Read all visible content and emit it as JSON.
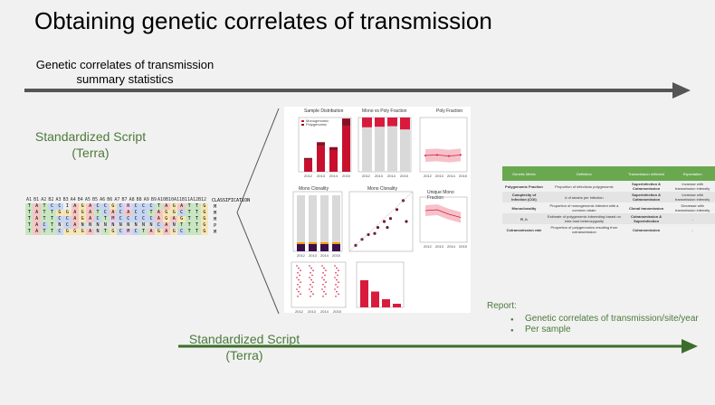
{
  "title": "Obtaining genetic correlates of transmission",
  "top_arrow_label": "Genetic correlates of transmission summary statistics",
  "script_left": {
    "line1": "Standardized Script",
    "line2": "(Terra)"
  },
  "script_bottom": {
    "line1": "Standardized Script",
    "line2": "(Terra)"
  },
  "report": {
    "heading": "Report:",
    "items": [
      "Genetic correlates of transmission/site/year",
      "Per sample"
    ]
  },
  "colors": {
    "green": "#4b7a3a",
    "arrow_gray": "#555555",
    "red": "#d81b3c",
    "table_header": "#6aa84f"
  },
  "alignment": {
    "header": [
      "A1",
      "B1",
      "A2",
      "B2",
      "A3",
      "B3",
      "A4",
      "B4",
      "A5",
      "B5",
      "A6",
      "B6",
      "A7",
      "B7",
      "A8",
      "B8",
      "A9",
      "B9",
      "A10",
      "B10",
      "A11",
      "B11",
      "A12",
      "B12"
    ],
    "classification_label": "CLASSIFICATION",
    "rows": [
      {
        "seq": "TATCCIAGACCGCRCCCTAGATTG",
        "cls": "M"
      },
      {
        "seq": "TATTGGAGATCACACCTAGGCTTG",
        "cls": "M"
      },
      {
        "seq": "TATTCCAGACTMCCCCCAGAGTTG",
        "cls": "M"
      },
      {
        "seq": "TACTNCANNNNNNNNNNCANTTTG",
        "cls": "P"
      },
      {
        "seq": "TATTCGGGANTGCMCTAGAGCTTG",
        "cls": "M"
      }
    ]
  },
  "figure_panels": {
    "sample_distribution": "Sample Distribution",
    "mono_vs_poly": "Mono vs Poly Fraction",
    "poly_fraction": "Poly Fraction",
    "mono_clonality_1": "Mono Clonality",
    "mono_clonality_2": "Mono Clonality",
    "unique_mono_fraction": "Unique Mono Fraction",
    "years": [
      "2012",
      "2013",
      "2014",
      "2015"
    ],
    "year_axis": "Year",
    "legend_mono": "Monogenomic",
    "legend_poly": "Polygenomic"
  },
  "chart_data": [
    {
      "type": "bar",
      "title": "Sample Distribution",
      "categories": [
        "2012",
        "2013",
        "2014",
        "2015"
      ],
      "series": [
        {
          "name": "Monogenomic",
          "values": [
            60,
            130,
            110,
            230
          ]
        },
        {
          "name": "Polygenomic",
          "values": [
            10,
            20,
            15,
            40
          ]
        }
      ],
      "ylim": [
        0,
        275
      ]
    },
    {
      "type": "bar",
      "title": "Mono vs Poly Fraction",
      "categories": [
        "2012",
        "2013",
        "2014",
        "2015"
      ],
      "series": [
        {
          "name": "Monogenomic",
          "values": [
            0.82,
            0.83,
            0.84,
            0.78
          ]
        },
        {
          "name": "Polygenomic",
          "values": [
            0.18,
            0.17,
            0.16,
            0.22
          ]
        }
      ],
      "ylim": [
        0,
        1
      ]
    },
    {
      "type": "line",
      "title": "Poly Fraction",
      "x": [
        "2012",
        "2013",
        "2014",
        "2015"
      ],
      "y": [
        0.3,
        0.31,
        0.29,
        0.31
      ],
      "ylim": [
        0,
        1
      ]
    },
    {
      "type": "line",
      "title": "Unique Mono Fraction",
      "x": [
        "2012",
        "2013",
        "2014",
        "2015"
      ],
      "y": [
        0.7,
        0.72,
        0.62,
        0.55
      ],
      "ylim": [
        0,
        1
      ]
    },
    {
      "type": "bar",
      "title": "",
      "categories": [
        "A",
        "B",
        "C",
        "D"
      ],
      "values": [
        0.6,
        0.35,
        0.18,
        0.08
      ],
      "ylim": [
        0,
        1
      ]
    }
  ],
  "metrics_table": {
    "headers": [
      "Genetic Metric",
      "Definition",
      "Transmission reflected",
      "Expectation"
    ],
    "rows": [
      [
        "Polygenomic Fraction",
        "Proportion of infections polygenomic",
        "Superinfection & Cotransmission",
        "Increase with transmission intensity"
      ],
      [
        "Complexity of Infection (COI)",
        "# of strains per infection",
        "Superinfection & Cotransmission",
        "Increase with transmission intensity"
      ],
      [
        "Monoclonality",
        "Proportion of monogenomic infected with a common strain",
        "Clonal transmission",
        "Decrease with transmission intensity"
      ],
      [
        "R_h",
        "Estimate of polygenomic inbreeding based on intra host heterozygosity",
        "Cotransmission & Superinfection",
        "-"
      ],
      [
        "Cotransmission rate",
        "Proportion of polygenomics resulting from cotransmission",
        "Cotransmission",
        "-"
      ]
    ]
  }
}
